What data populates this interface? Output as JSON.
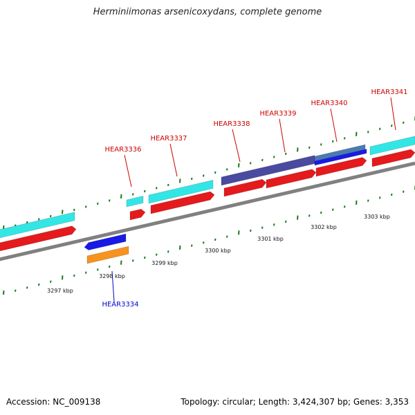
{
  "title": "Herminiimonas arsenicoxydans, complete genome",
  "footer": {
    "accession": "Accession: NC_009138",
    "summary": "Topology: circular; Length: 3,424,307 bp; Genes: 3,353"
  },
  "colors": {
    "cyan": "#33e6e6",
    "red": "#e41a1c",
    "blue": "#1a1ae6",
    "orange": "#f7931e",
    "slate": "#4a4aa0",
    "backbone": "#808080",
    "tick": "#1a7a1a",
    "label_forward": "#cc0000",
    "label_reverse": "#0000cc"
  },
  "ruler": {
    "unit": "kbp",
    "labels": [
      "3297 kbp",
      "3298 kbp",
      "3299 kbp",
      "3300 kbp",
      "3301 kbp",
      "3302 kbp",
      "3303 kbp"
    ]
  },
  "gene_labels": [
    {
      "text": "HEAR3336",
      "strand": "forward"
    },
    {
      "text": "HEAR3337",
      "strand": "forward"
    },
    {
      "text": "HEAR3338",
      "strand": "forward"
    },
    {
      "text": "HEAR3339",
      "strand": "forward"
    },
    {
      "text": "HEAR3340",
      "strand": "forward"
    },
    {
      "text": "HEAR3341",
      "strand": "forward"
    },
    {
      "text": "HEAR3334",
      "strand": "reverse"
    }
  ]
}
